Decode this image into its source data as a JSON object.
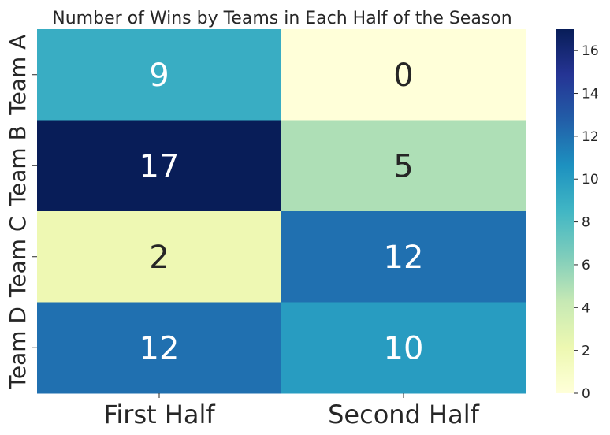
{
  "chart_data": {
    "type": "heatmap",
    "title": "Number of Wins by Teams in Each Half of the Season",
    "xlabel": "",
    "ylabel": "",
    "x_categories": [
      "First Half",
      "Second Half"
    ],
    "y_categories": [
      "Team A",
      "Team B",
      "Team C",
      "Team D"
    ],
    "values": [
      [
        9,
        0
      ],
      [
        17,
        5
      ],
      [
        2,
        12
      ],
      [
        12,
        10
      ]
    ],
    "colorbar": {
      "vmin": 0,
      "vmax": 17,
      "ticks": [
        "0",
        "2",
        "4",
        "6",
        "8",
        "10",
        "12",
        "14",
        "16"
      ],
      "colormap": "YlGnBu"
    },
    "annotations": true,
    "grid": false
  }
}
